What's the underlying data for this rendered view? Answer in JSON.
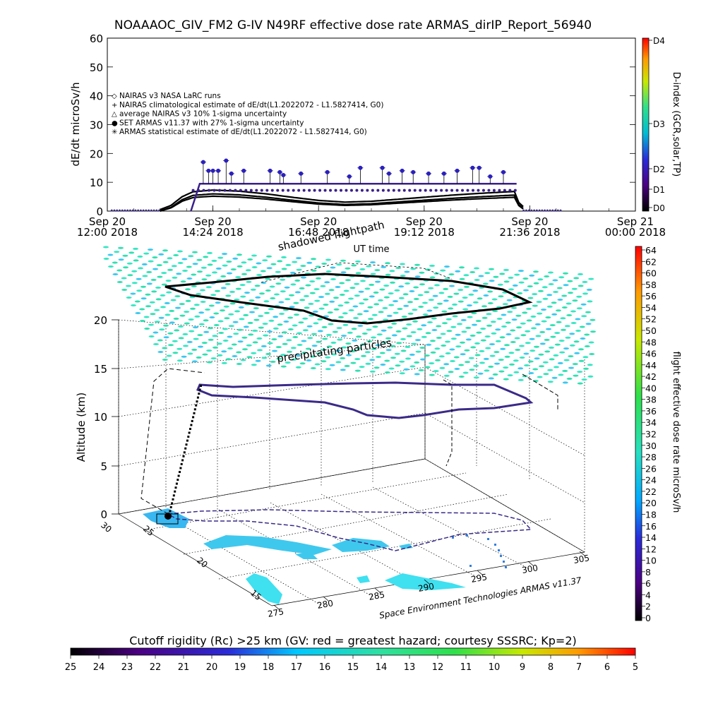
{
  "title": "NOAAAOC_GIV_FM2 G-IV    N49RF   effective dose rate ARMAS_dirIP_Report_56940",
  "chart_data": [
    {
      "type": "scatter",
      "name": "dose_rate_timeseries",
      "ylabel": "dE/dt microSv/h",
      "xlabel": "UT time",
      "ylim": [
        0,
        60
      ],
      "y_ticks": [
        "0",
        "10",
        "20",
        "30",
        "40",
        "50",
        "60"
      ],
      "x_ticks": [
        {
          "line1": "Sep 20",
          "line2": "12:00  2018",
          "h": 12.0
        },
        {
          "line1": "Sep 20",
          "line2": "14:24  2018",
          "h": 14.4
        },
        {
          "line1": "Sep 20",
          "line2": "16:48  2018",
          "h": 16.8
        },
        {
          "line1": "Sep 20",
          "line2": "19:12  2018",
          "h": 19.2
        },
        {
          "line1": "Sep 20",
          "line2": "21:36  2018",
          "h": 21.6
        },
        {
          "line1": "Sep 21",
          "line2": "00:00  2018",
          "h": 24.0
        }
      ],
      "xlim_hours": [
        12.0,
        24.0
      ],
      "legend": [
        {
          "symbol": "◇",
          "text": "NAIRAS v3 NASA LaRC runs"
        },
        {
          "symbol": "+",
          "text": "NAIRAS climatological estimate of dE/dt(L1.2022072 - L1.5827414, G0)"
        },
        {
          "symbol": "△",
          "text": "average NAIRAS v3 10% 1-sigma uncertainty"
        },
        {
          "symbol": "●",
          "text": "SET ARMAS v11.37 with 27% 1-sigma uncertainty"
        },
        {
          "symbol": "✳",
          "text": "ARMAS statistical estimate of dE/dt(L1.2022072 - L1.5827414, G0)"
        }
      ],
      "legend_position": "left",
      "nairas_profile": [
        [
          12.0,
          0
        ],
        [
          13.2,
          0
        ],
        [
          13.45,
          1.5
        ],
        [
          13.7,
          4.5
        ],
        [
          13.95,
          6.2
        ],
        [
          14.4,
          6.8
        ],
        [
          15.0,
          6.4
        ],
        [
          15.6,
          5.5
        ],
        [
          16.2,
          4.3
        ],
        [
          16.8,
          3.2
        ],
        [
          17.4,
          2.6
        ],
        [
          18.0,
          2.9
        ],
        [
          18.6,
          3.6
        ],
        [
          19.2,
          4.3
        ],
        [
          19.8,
          5.0
        ],
        [
          20.4,
          5.6
        ],
        [
          21.0,
          6.1
        ],
        [
          21.25,
          6.3
        ],
        [
          21.35,
          2.5
        ],
        [
          21.5,
          0.3
        ],
        [
          22.0,
          0
        ]
      ],
      "armas_spikes": [
        [
          14.18,
          17
        ],
        [
          14.3,
          14
        ],
        [
          14.4,
          14
        ],
        [
          14.52,
          14
        ],
        [
          14.7,
          17.5
        ],
        [
          14.82,
          13
        ],
        [
          15.1,
          14
        ],
        [
          15.7,
          14
        ],
        [
          15.92,
          13.5
        ],
        [
          16.0,
          12.5
        ],
        [
          16.4,
          13
        ],
        [
          17.0,
          13.5
        ],
        [
          17.5,
          12
        ],
        [
          17.75,
          15
        ],
        [
          18.25,
          15
        ],
        [
          18.4,
          13
        ],
        [
          18.7,
          14
        ],
        [
          18.95,
          13.5
        ],
        [
          19.3,
          13
        ],
        [
          19.65,
          13
        ],
        [
          19.95,
          14
        ],
        [
          20.3,
          15
        ],
        [
          20.45,
          15
        ],
        [
          20.7,
          12
        ],
        [
          21.0,
          13.5
        ]
      ],
      "armas_baseline": 9.5,
      "d_index_colorbar": {
        "label": "D-index (GCR,solar,TP)",
        "ticks": [
          "D4",
          "D3",
          "D2",
          "D1",
          "D0"
        ]
      }
    },
    {
      "type": "scatter",
      "name": "flight_path_3d",
      "zlabel": "Altitude (km)",
      "z_ticks": [
        "0",
        "5",
        "10",
        "15",
        "20"
      ],
      "lat_ticks": [
        "15",
        "20",
        "25",
        "30"
      ],
      "lon_ticks": [
        "275",
        "280",
        "285",
        "290",
        "295",
        "300",
        "305"
      ],
      "annotations": {
        "shadow": "shadowed flightpath",
        "particles": "precipitating particles",
        "credit": "Space Environment Technologies ARMAS v11.37"
      },
      "dose_colorbar": {
        "label": "flight effective dose rate microSv/h",
        "min": 0,
        "max": 64,
        "step": 2,
        "ticks": [
          "0",
          "2",
          "4",
          "6",
          "8",
          "10",
          "12",
          "14",
          "16",
          "18",
          "20",
          "22",
          "24",
          "26",
          "28",
          "30",
          "32",
          "34",
          "36",
          "38",
          "40",
          "42",
          "44",
          "46",
          "48",
          "50",
          "52",
          "54",
          "56",
          "58",
          "60",
          "62",
          "64"
        ]
      },
      "cutoff_colorbar": {
        "label": "Cutoff rigidity (Rc) >25 km (GV: red = greatest hazard; courtesy SSSRC; Kp=2)",
        "ticks": [
          "25",
          "24",
          "23",
          "22",
          "21",
          "20",
          "19",
          "18",
          "17",
          "16",
          "15",
          "14",
          "13",
          "12",
          "11",
          "10",
          "9",
          "8",
          "7",
          "6",
          "5"
        ]
      }
    }
  ],
  "colors": {
    "armas": "#3a1f8c",
    "armas_dot": "#2a1fc0",
    "particles": "#35e6c3",
    "track_top": "#000000",
    "track_flight": "#3b2a88"
  }
}
